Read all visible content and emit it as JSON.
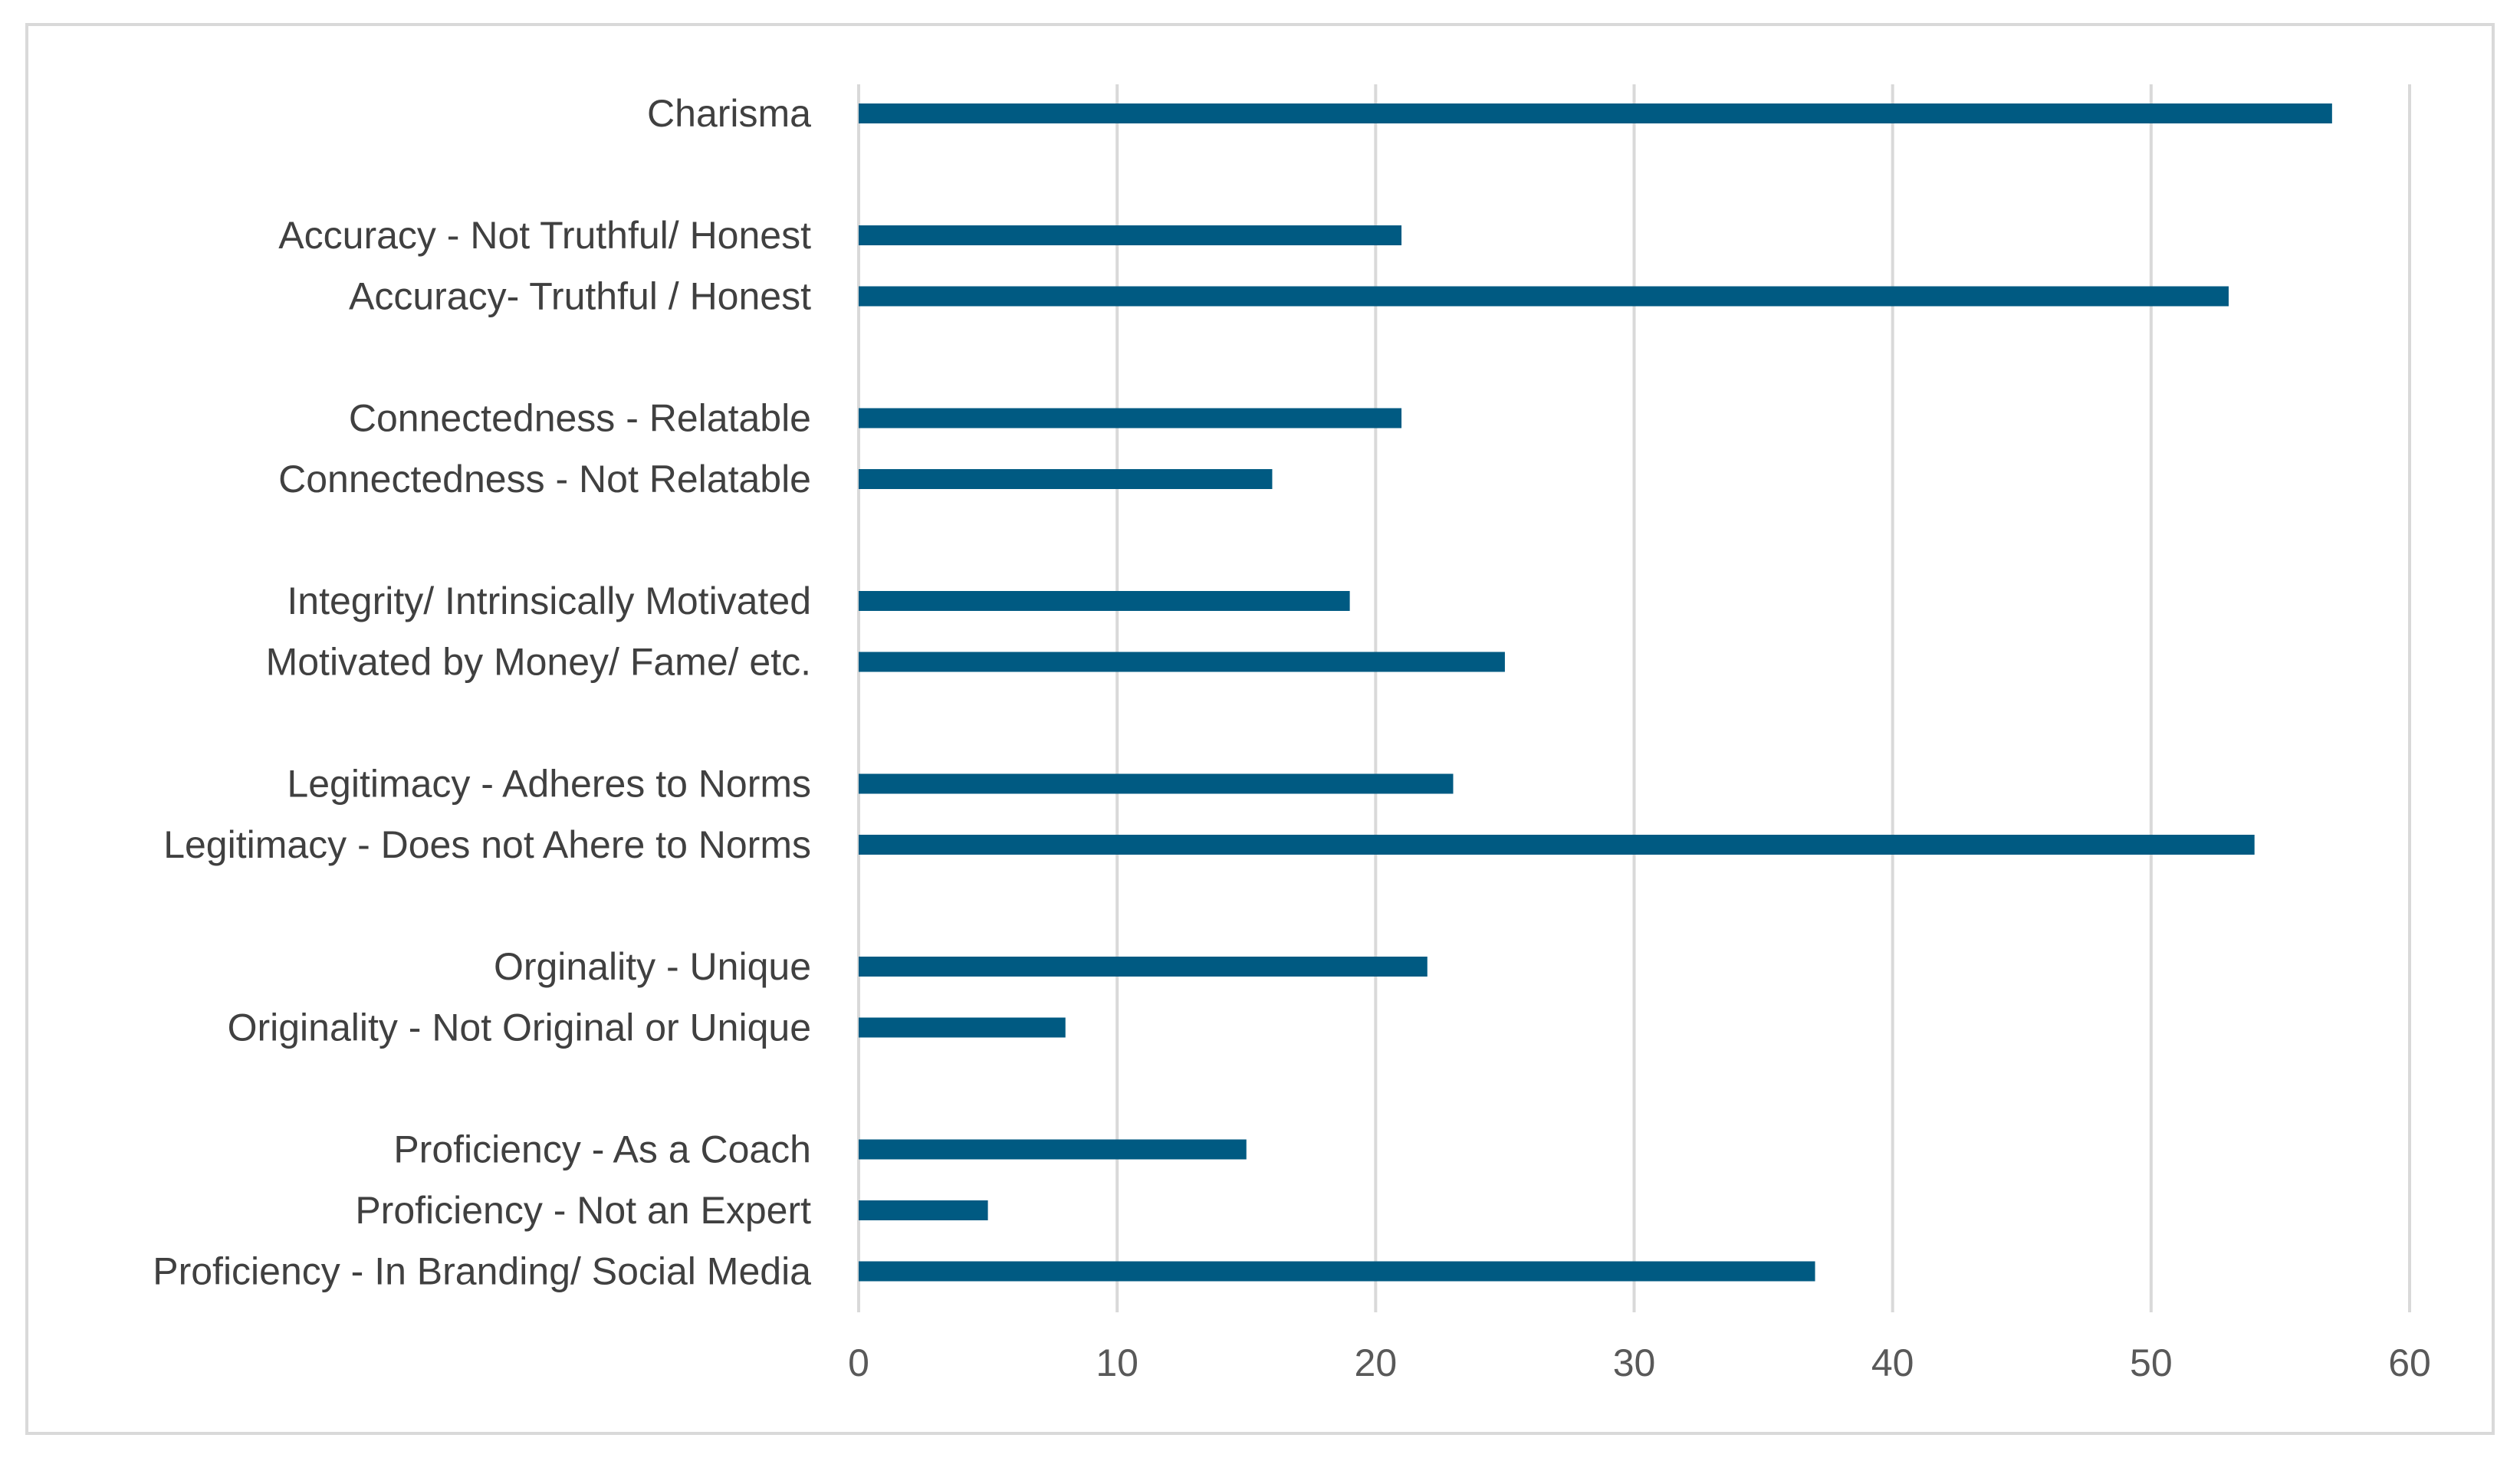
{
  "chart_data": {
    "type": "bar",
    "orientation": "horizontal",
    "title": "",
    "xlabel": "",
    "ylabel": "",
    "xlim": [
      0,
      60
    ],
    "xticks": [
      0,
      10,
      20,
      30,
      40,
      50,
      60
    ],
    "grid": "vertical",
    "legend": "none",
    "bar_color": "#005a82",
    "groups": [
      {
        "name": "Charisma",
        "bars": [
          {
            "label": "Charisma",
            "value": 57
          }
        ]
      },
      {
        "name": "Accuracy",
        "bars": [
          {
            "label": "Accuracy - Not Truthful/ Honest",
            "value": 21
          },
          {
            "label": "Accuracy- Truthful / Honest",
            "value": 53
          }
        ]
      },
      {
        "name": "Connectedness",
        "bars": [
          {
            "label": "Connectedness - Relatable",
            "value": 21
          },
          {
            "label": "Connectedness - Not Relatable",
            "value": 16
          }
        ]
      },
      {
        "name": "Integrity",
        "bars": [
          {
            "label": "Integrity/ Intrinsically Motivated",
            "value": 19
          },
          {
            "label": "Motivated by Money/ Fame/ etc.",
            "value": 25
          }
        ]
      },
      {
        "name": "Legitimacy",
        "bars": [
          {
            "label": "Legitimacy - Adheres to Norms",
            "value": 23
          },
          {
            "label": "Legitimacy - Does not Ahere to Norms",
            "value": 54
          }
        ]
      },
      {
        "name": "Originality",
        "bars": [
          {
            "label": "Orginality - Unique",
            "value": 22
          },
          {
            "label": "Originality - Not Original or Unique",
            "value": 8
          }
        ]
      },
      {
        "name": "Proficiency",
        "bars": [
          {
            "label": "Proficiency - As a Coach",
            "value": 15
          },
          {
            "label": "Proficiency - Not an Expert",
            "value": 5
          },
          {
            "label": "Proficiency - In Branding/ Social Media",
            "value": 37
          }
        ]
      }
    ]
  }
}
